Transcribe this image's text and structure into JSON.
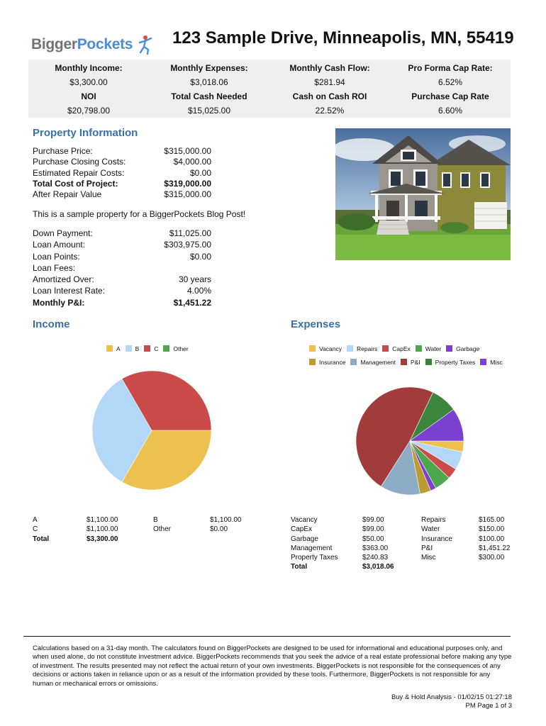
{
  "logo": {
    "part1": "Bigger",
    "part2": "Pockets"
  },
  "title": "123 Sample Drive, Minneapolis, MN, 55419",
  "summary": [
    {
      "label": "Monthly Income:",
      "value": "$3,300.00"
    },
    {
      "label": "Monthly Expenses:",
      "value": "$3,018.06"
    },
    {
      "label": "Monthly Cash Flow:",
      "value": "$281.94"
    },
    {
      "label": "Pro Forma Cap Rate:",
      "value": "6.52%"
    },
    {
      "label": "NOI",
      "value": "$20,798.00"
    },
    {
      "label": "Total Cash Needed",
      "value": "$15,025.00"
    },
    {
      "label": "Cash on Cash ROI",
      "value": "22.52%"
    },
    {
      "label": "Purchase Cap Rate",
      "value": "6.60%"
    }
  ],
  "property": {
    "heading": "Property Information",
    "costs": [
      {
        "label": "Purchase Price:",
        "value": "$315,000.00"
      },
      {
        "label": "Purchase Closing Costs:",
        "value": "$4,000.00"
      },
      {
        "label": "Estimated Repair Costs:",
        "value": "$0.00"
      },
      {
        "label": "Total Cost of Project:",
        "value": "$319,000.00"
      },
      {
        "label": "After Repair Value",
        "value": "$315,000.00"
      }
    ],
    "note": "This is a sample property for a BiggerPockets Blog Post!",
    "loan": [
      {
        "label": "Down Payment:",
        "value": "$11,025.00"
      },
      {
        "label": "Loan Amount:",
        "value": "$303,975.00"
      },
      {
        "label": "Loan Points:",
        "value": "$0.00"
      },
      {
        "label": "Loan Fees:",
        "value": ""
      },
      {
        "label": "Amortized Over:",
        "value": "30 years"
      },
      {
        "label": "Loan Interest Rate:",
        "value": "4.00%"
      },
      {
        "label": "Monthly P&I:",
        "value": "$1,451.22"
      }
    ]
  },
  "income": {
    "heading": "Income",
    "table": [
      [
        "A",
        "$1,100.00",
        "B",
        "$1,100.00"
      ],
      [
        "C",
        "$1,100.00",
        "Other",
        "$0.00"
      ],
      [
        "Total",
        "$3,300.00",
        "",
        ""
      ]
    ]
  },
  "expenses": {
    "heading": "Expenses",
    "table": [
      [
        "Vacancy",
        "$99.00",
        "Repairs",
        "$165.00"
      ],
      [
        "CapEx",
        "$99.00",
        "Water",
        "$150.00"
      ],
      [
        "Garbage",
        "$50.00",
        "Insurance",
        "$100.00"
      ],
      [
        "Management",
        "$363.00",
        "P&I",
        "$1,451.22"
      ],
      [
        "Property Taxes",
        "$240.83",
        "Misc",
        "$300.00"
      ],
      [
        "Total",
        "$3,018.06",
        "",
        ""
      ]
    ]
  },
  "chart_data": [
    {
      "type": "pie",
      "categories": [
        "A",
        "B",
        "C",
        "Other"
      ],
      "values": [
        1100,
        1100,
        1100,
        0
      ],
      "colors": [
        "#edc14f",
        "#b3d7f6",
        "#cb4b4b",
        "#4da74d"
      ],
      "legend": "top"
    },
    {
      "type": "pie",
      "categories": [
        "Vacancy",
        "Repairs",
        "CapEx",
        "Water",
        "Garbage",
        "Insurance",
        "Management",
        "P&I",
        "Property Taxes",
        "Misc"
      ],
      "values": [
        99,
        165,
        99,
        150,
        50,
        100,
        363,
        1451.22,
        240.83,
        300
      ],
      "colors": [
        "#edc14f",
        "#b3d7f6",
        "#cb4b4b",
        "#4da74d",
        "#7e3fce",
        "#bd9b33",
        "#8cacc6",
        "#a23c3c",
        "#3d853d",
        "#7a40d0"
      ],
      "legend": "top"
    }
  ],
  "disclaimer": "Calculations based on a 31-day month. The calculators found on BiggerPockets are designed to be used for informational and educational purposes only, and when used alone, do not constitute investment advice. BiggerPockets recommends that you seek the advice of a real estate professional before making any type of investment. The results presented may not reflect the actual return of your own investments. BiggerPockets is not responsible for the consequences of any decisions or actions taken in reliance upon or as a result of the information provided by these tools. Furthermore, BiggerPockets is not responsible for any human or mechanical errors or omissions.",
  "footer": {
    "line1": "Buy & Hold Analysis - 01/02/15 01:27:18",
    "line2": "PM Page 1 of 3"
  }
}
